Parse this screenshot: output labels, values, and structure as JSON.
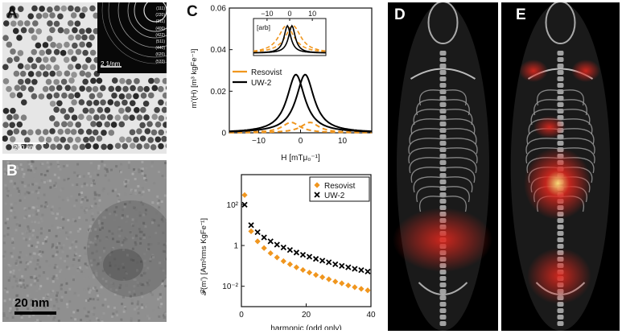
{
  "panel_labels": {
    "a": "A",
    "b": "B",
    "c": "C",
    "d": "D",
    "e": "E"
  },
  "panel_a": {
    "scale_bar": "200 nm",
    "inset_scale": "2 1/nm",
    "ring_indices": [
      "(111)",
      "(220)",
      "(311)",
      "(400)",
      "(422)",
      "(511)",
      "(440)",
      "(620)",
      "(533)"
    ]
  },
  "panel_b": {
    "scale_bar": "20 nm"
  },
  "chart_data": [
    {
      "type": "line",
      "ylabel": "m'(H) [m³ kgFe⁻¹]",
      "xlabel": "H [mTμ₀⁻¹]",
      "xlim": [
        -17,
        17
      ],
      "ylim": [
        0,
        0.06
      ],
      "xticks": [
        -10,
        0,
        10
      ],
      "yticks": [
        0,
        0.02,
        0.04,
        0.06
      ],
      "ytick_labels": [
        "0",
        "0.02",
        "0.04",
        "0.06"
      ],
      "legend": [
        "Resovist",
        "UW-2"
      ],
      "legend_position": "middle-left",
      "series": [
        {
          "name": "Resovist",
          "color": "#f0961e",
          "style": "dashed",
          "peak": 0.005,
          "width": 4.5
        },
        {
          "name": "UW-2",
          "color": "#000000",
          "style": "solid",
          "peak": 0.028,
          "width": 2.2
        }
      ],
      "inset": {
        "ylabel": "[arb]",
        "xticks": [
          -10,
          0,
          10
        ],
        "xlim": [
          -16,
          16
        ],
        "series": [
          {
            "name": "Resovist",
            "color": "#f0961e",
            "style": "dashed"
          },
          {
            "name": "UW-2",
            "color": "#000000",
            "style": "solid"
          }
        ]
      }
    },
    {
      "type": "scatter",
      "xlabel": "harmonic (odd only)",
      "ylabel": "𝓕(m') [Am²rms KgFe⁻¹]",
      "xlim": [
        0,
        40
      ],
      "ylog": true,
      "ylim": [
        0.001,
        3000
      ],
      "xticks": [
        0,
        20,
        40
      ],
      "yticks": [
        0.01,
        1,
        100
      ],
      "ytick_labels": [
        "10⁻²",
        "1",
        "10²"
      ],
      "legend": [
        "Resovist",
        "UW-2"
      ],
      "legend_position": "top-right",
      "x": [
        1,
        3,
        5,
        7,
        9,
        11,
        13,
        15,
        17,
        19,
        21,
        23,
        25,
        27,
        29,
        31,
        33,
        35,
        37,
        39
      ],
      "series": [
        {
          "name": "Resovist",
          "marker": "diamond",
          "color": "#f0961e",
          "values": [
            300,
            5,
            1.6,
            0.75,
            0.42,
            0.26,
            0.17,
            0.12,
            0.085,
            0.063,
            0.047,
            0.036,
            0.028,
            0.022,
            0.017,
            0.014,
            0.011,
            0.009,
            0.0075,
            0.0063
          ]
        },
        {
          "name": "UW-2",
          "marker": "x",
          "color": "#000000",
          "values": [
            100,
            10,
            4.5,
            2.5,
            1.6,
            1.1,
            0.8,
            0.6,
            0.45,
            0.35,
            0.28,
            0.22,
            0.18,
            0.15,
            0.12,
            0.1,
            0.085,
            0.072,
            0.062,
            0.053
          ]
        }
      ]
    }
  ],
  "colors": {
    "resovist": "#f0961e",
    "uw2": "#000000",
    "signal": "#e0281e"
  }
}
